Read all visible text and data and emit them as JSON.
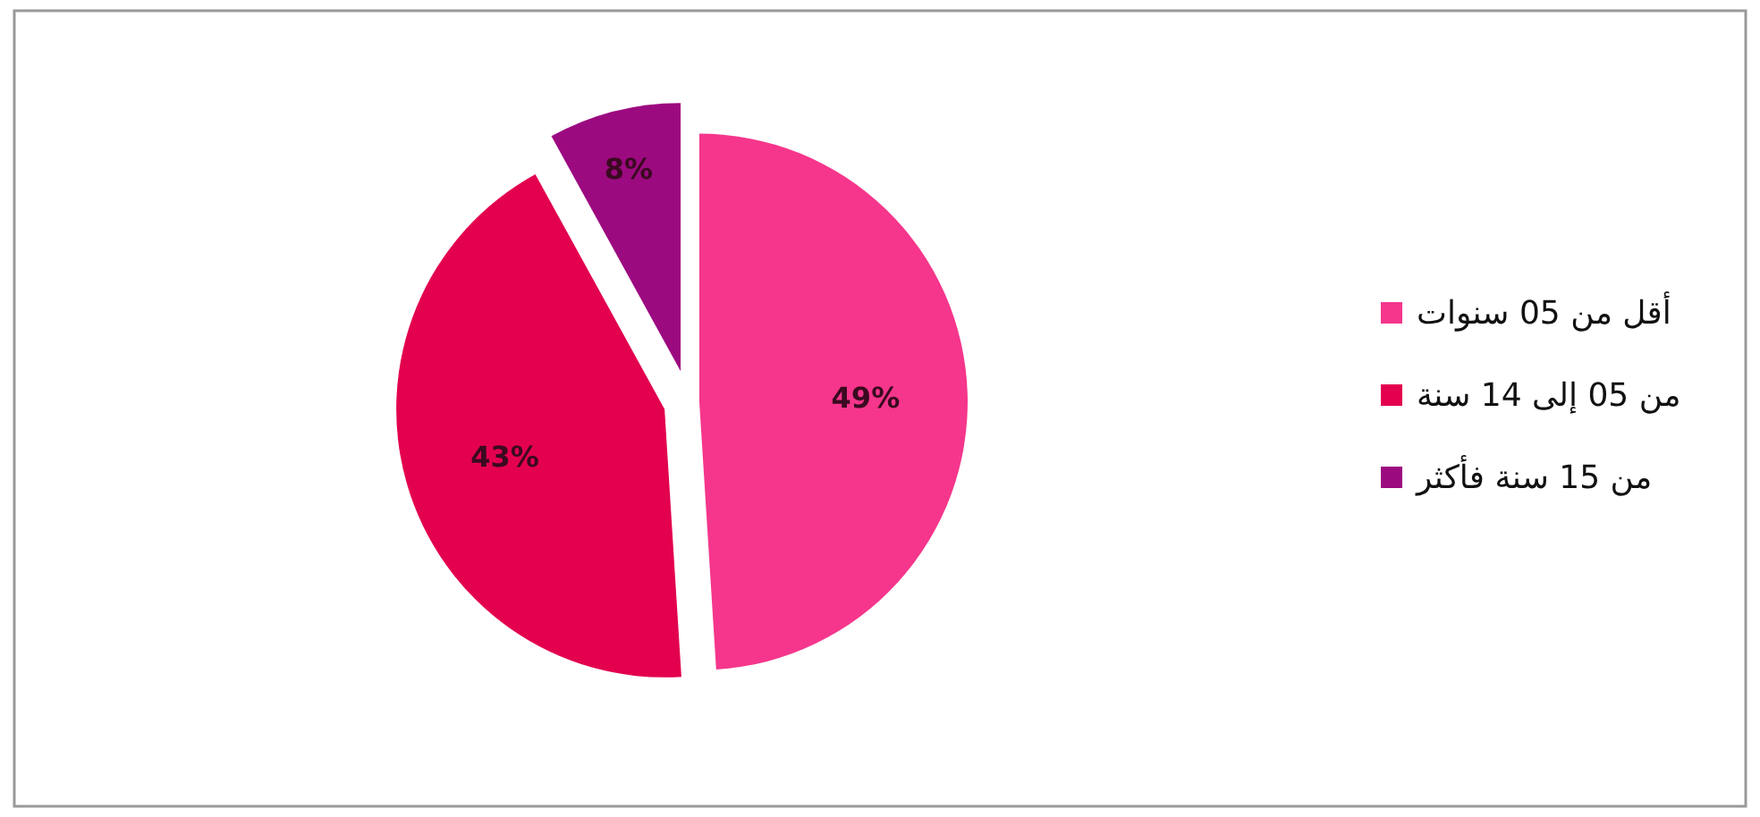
{
  "chart_data": {
    "type": "pie",
    "categories": [
      "أقل من 05 سنوات",
      "من 05 إلى 14 سنة",
      "من 15 سنة فأكثر"
    ],
    "values": [
      49,
      43,
      8
    ],
    "colors": [
      "#f5368c",
      "#e3004f",
      "#9c0a80"
    ],
    "value_labels": [
      "49%",
      "43%",
      "8%"
    ],
    "legend": "right"
  }
}
